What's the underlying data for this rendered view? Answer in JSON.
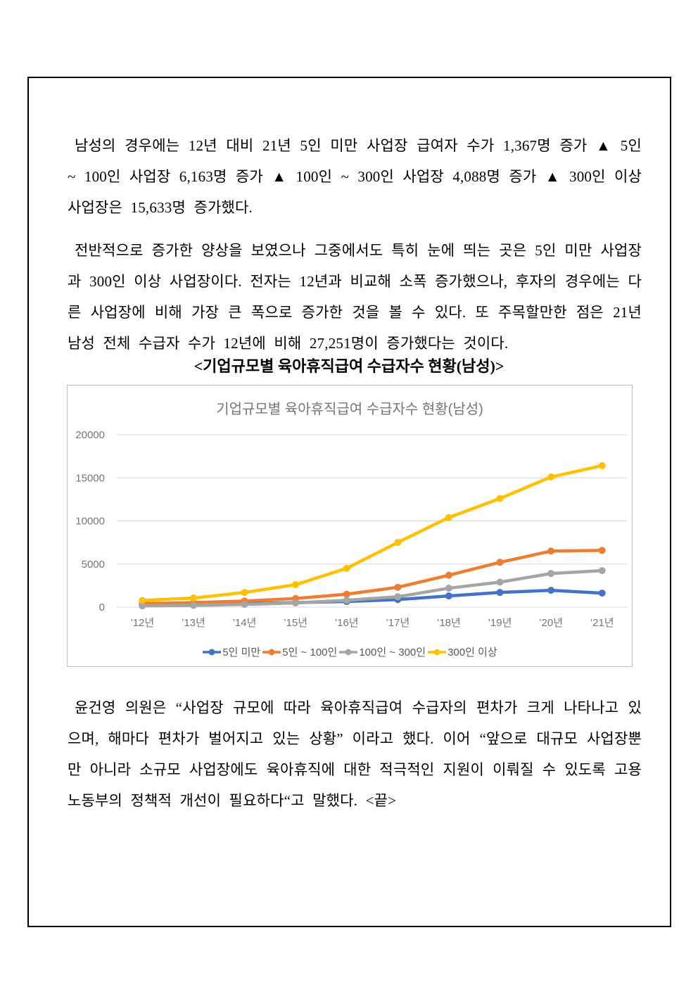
{
  "doc": {
    "paragraph1": "남성의 경우에는 12년 대비 21년 5인 미만 사업장 급여자 수가 1,367명 증가 ▲ 5인 ~ 100인 사업장 6,163명 증가 ▲ 100인 ~ 300인 사업장 4,088명 증가 ▲ 300인 이상 사업장은 15,633명 증가했다.",
    "paragraph2": "전반적으로 증가한 양상을 보였으나 그중에서도 특히 눈에 띄는 곳은 5인 미만 사업장과 300인 이상 사업장이다. 전자는 12년과 비교해 소폭 증가했으나, 후자의 경우에는 다른 사업장에 비해 가장 큰 폭으로 증가한 것을 볼 수 있다. 또 주목할만한 점은 21년 남성 전체 수급자 수가 12년에 비해 27,251명이 증가했다는 것이다.",
    "chart_heading": "<기업규모별 육아휴직급여 수급자수 현황(남성)>",
    "paragraph3": "윤건영 의원은 “사업장 규모에 따라 육아휴직급여 수급자의 편차가 크게 나타나고 있으며, 해마다 편차가 벌어지고 있는 상황” 이라고 했다. 이어 “앞으로 대규모 사업장뿐만 아니라 소규모 사업장에도 육아휴직에 대한 적극적인 지원이 이뤄질 수 있도록 고용노동부의 정책적 개선이 필요하다“고 말했다. <끝>"
  },
  "chart_data": {
    "type": "line",
    "title": "기업규모별 육아휴직급여 수급자수 현황(남성)",
    "categories": [
      "’12년",
      "’13년",
      "’14년",
      "’15년",
      "’16년",
      "’17년",
      "’18년",
      "’19년",
      "’20년",
      "’21년"
    ],
    "series": [
      {
        "name": "5인 미만",
        "color": "#4472C4",
        "values": [
          260,
          310,
          400,
          520,
          650,
          880,
          1300,
          1700,
          1950,
          1627
        ]
      },
      {
        "name": "5인 ~ 100인",
        "color": "#ED7D31",
        "values": [
          420,
          520,
          700,
          1000,
          1500,
          2300,
          3700,
          5200,
          6500,
          6583
        ]
      },
      {
        "name": "100인 ~ 300인",
        "color": "#A5A5A5",
        "values": [
          150,
          200,
          320,
          480,
          800,
          1200,
          2200,
          2900,
          3900,
          4238
        ]
      },
      {
        "name": "300인 이상",
        "color": "#FFC000",
        "values": [
          780,
          1050,
          1700,
          2600,
          4500,
          7500,
          10400,
          12600,
          15100,
          16413
        ]
      }
    ],
    "xlabel": "",
    "ylabel": "",
    "ylim": [
      0,
      20000
    ],
    "yticks": [
      0,
      5000,
      10000,
      15000,
      20000
    ],
    "grid": true,
    "legend_position": "bottom",
    "colors": {
      "grid": "#D9D9D9",
      "axis_text": "#757575",
      "title_text": "#757575",
      "legend_text": "#595959",
      "chart_border": "#BFBFBF"
    }
  }
}
